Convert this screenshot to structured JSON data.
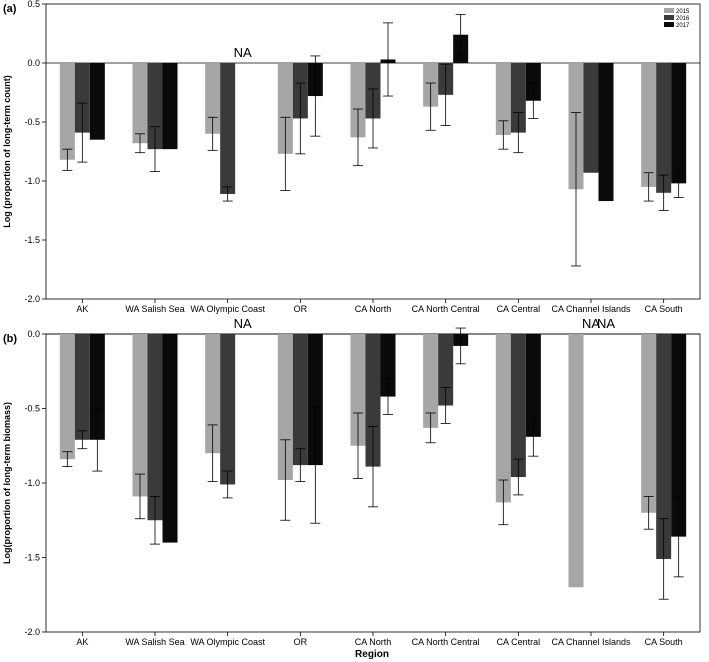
{
  "figure": {
    "xlabel": "Region"
  },
  "chart_data": [
    {
      "type": "bar",
      "panel_label": "(a)",
      "ylabel": "Log (proportion of long-term count)",
      "ylim": [
        -2.0,
        0.5
      ],
      "yticks": [
        "0.5",
        "0.0",
        "-0.5",
        "-1.0",
        "-1.5",
        "-2.0"
      ],
      "grid": false,
      "legend_position": "top-right",
      "categories": [
        "AK",
        "WA Salish Sea",
        "WA Olympic Coast",
        "OR",
        "CA North",
        "CA North Central",
        "CA Central",
        "CA Channel Islands",
        "CA South"
      ],
      "series": [
        {
          "name": "2015",
          "color": "#a6a6a6",
          "values": [
            -0.82,
            -0.68,
            -0.6,
            -0.77,
            -0.63,
            -0.37,
            -0.61,
            -1.07,
            -1.05
          ],
          "errors": [
            0.09,
            0.08,
            0.14,
            0.31,
            0.24,
            0.2,
            0.12,
            0.65,
            0.12
          ]
        },
        {
          "name": "2016",
          "color": "#3a3a3a",
          "values": [
            -0.59,
            -0.73,
            -1.11,
            -0.47,
            -0.47,
            -0.27,
            -0.59,
            -0.93,
            -1.1
          ],
          "errors": [
            0.25,
            0.19,
            0.06,
            0.3,
            0.25,
            0.26,
            0.17,
            0.0,
            0.15
          ]
        },
        {
          "name": "2017",
          "color": "#0a0a0a",
          "values": [
            -0.65,
            -0.73,
            null,
            -0.28,
            0.03,
            0.24,
            -0.32,
            -1.17,
            -1.02
          ],
          "errors": [
            0.0,
            0.0,
            null,
            0.34,
            0.31,
            0.17,
            0.15,
            0.0,
            0.12
          ]
        }
      ],
      "na_labels": [
        {
          "category": "WA Olympic Coast",
          "series": "2017",
          "text": "NA"
        }
      ]
    },
    {
      "type": "bar",
      "panel_label": "(b)",
      "ylabel": "Log(proportion of long-term biomass)",
      "ylim": [
        -2.0,
        0.0
      ],
      "yticks": [
        "0.0",
        "-0.5",
        "-1.0",
        "-1.5",
        "-2.0"
      ],
      "grid": false,
      "categories": [
        "AK",
        "WA Salish Sea",
        "WA Olympic Coast",
        "OR",
        "CA North",
        "CA North Central",
        "CA Central",
        "CA Channel Islands",
        "CA South"
      ],
      "series": [
        {
          "name": "2015",
          "color": "#a6a6a6",
          "values": [
            -0.84,
            -1.09,
            -0.8,
            -0.98,
            -0.75,
            -0.63,
            -1.13,
            -1.7,
            -1.2
          ],
          "errors": [
            0.05,
            0.15,
            0.19,
            0.27,
            0.22,
            0.1,
            0.15,
            0.0,
            0.11
          ]
        },
        {
          "name": "2016",
          "color": "#3a3a3a",
          "values": [
            -0.71,
            -1.25,
            -1.01,
            -0.88,
            -0.89,
            -0.48,
            -0.96,
            null,
            -1.51
          ],
          "errors": [
            0.06,
            0.16,
            0.09,
            0.11,
            0.27,
            0.12,
            0.12,
            null,
            0.27
          ]
        },
        {
          "name": "2017",
          "color": "#0a0a0a",
          "values": [
            -0.71,
            -1.4,
            null,
            -0.88,
            -0.42,
            -0.08,
            -0.69,
            null,
            -1.36
          ],
          "errors": [
            0.21,
            0.0,
            null,
            0.39,
            0.12,
            0.12,
            0.13,
            null,
            0.27
          ]
        }
      ],
      "na_labels": [
        {
          "category": "WA Olympic Coast",
          "series": "2017",
          "text": "NA"
        },
        {
          "category": "CA Channel Islands",
          "series": "2016",
          "text": "NA"
        },
        {
          "category": "CA Channel Islands",
          "series": "2017",
          "text": "NA"
        }
      ]
    }
  ]
}
